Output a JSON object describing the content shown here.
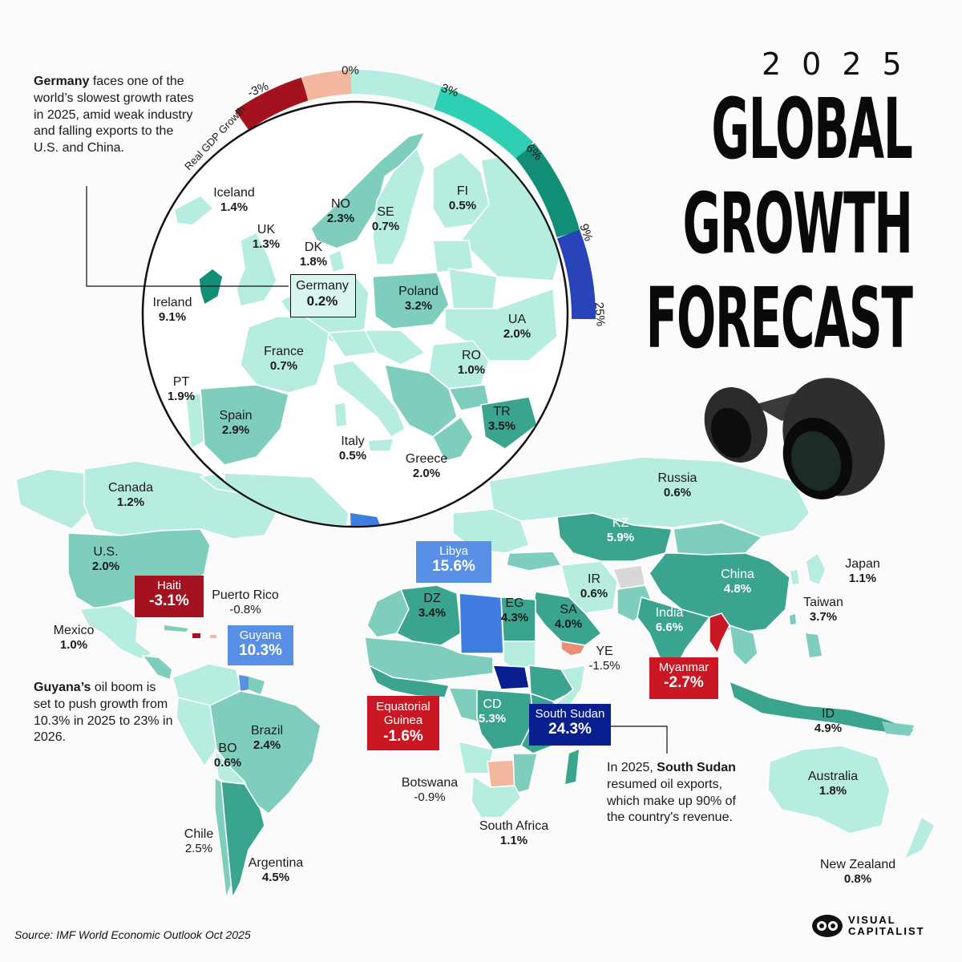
{
  "title": {
    "year": "2025",
    "line1": "GLOBAL",
    "line2": "GROWTH",
    "line3": "FORECAST"
  },
  "legend": {
    "label": "Real GDP Growth",
    "ticks": [
      "-3%",
      "0%",
      "3%",
      "6%",
      "9%",
      "25%"
    ]
  },
  "colors": {
    "strong_negative": "#a3121e",
    "mild_negative": "#f2b79f",
    "low_growth": "#b7ece1",
    "mid_growth": "#7fcdbd",
    "high_growth": "#3aa48e",
    "very_high_growth": "#5a8fe6",
    "extreme_growth": "#0a1f8f"
  },
  "europe_inset": [
    {
      "name": "Iceland",
      "value": "1.4%"
    },
    {
      "name": "NO",
      "value": "2.3%"
    },
    {
      "name": "SE",
      "value": "0.7%"
    },
    {
      "name": "FI",
      "value": "0.5%"
    },
    {
      "name": "UK",
      "value": "1.3%"
    },
    {
      "name": "DK",
      "value": "1.8%"
    },
    {
      "name": "Ireland",
      "value": "9.1%"
    },
    {
      "name": "Germany",
      "value": "0.2%"
    },
    {
      "name": "Poland",
      "value": "3.2%"
    },
    {
      "name": "UA",
      "value": "2.0%"
    },
    {
      "name": "France",
      "value": "0.7%"
    },
    {
      "name": "RO",
      "value": "1.0%"
    },
    {
      "name": "PT",
      "value": "1.9%"
    },
    {
      "name": "Spain",
      "value": "2.9%"
    },
    {
      "name": "TR",
      "value": "3.5%"
    },
    {
      "name": "Italy",
      "value": "0.5%"
    },
    {
      "name": "Greece",
      "value": "2.0%"
    }
  ],
  "world": [
    {
      "name": "Canada",
      "value": "1.2%"
    },
    {
      "name": "U.S.",
      "value": "2.0%"
    },
    {
      "name": "Mexico",
      "value": "1.0%"
    },
    {
      "name": "Puerto Rico",
      "value": "-0.8%"
    },
    {
      "name": "Brazil",
      "value": "2.4%"
    },
    {
      "name": "BO",
      "value": "0.6%"
    },
    {
      "name": "Chile",
      "value": "2.5%"
    },
    {
      "name": "Argentina",
      "value": "4.5%"
    },
    {
      "name": "Russia",
      "value": "0.6%"
    },
    {
      "name": "KZ",
      "value": "5.9%"
    },
    {
      "name": "China",
      "value": "4.8%"
    },
    {
      "name": "Japan",
      "value": "1.1%"
    },
    {
      "name": "Taiwan",
      "value": "3.7%"
    },
    {
      "name": "India",
      "value": "6.6%"
    },
    {
      "name": "IR",
      "value": "0.6%"
    },
    {
      "name": "SA",
      "value": "4.0%"
    },
    {
      "name": "YE",
      "value": "-1.5%"
    },
    {
      "name": "EG",
      "value": "4.3%"
    },
    {
      "name": "DZ",
      "value": "3.4%"
    },
    {
      "name": "CD",
      "value": "5.3%"
    },
    {
      "name": "Botswana",
      "value": "-0.9%"
    },
    {
      "name": "South Africa",
      "value": "1.1%"
    },
    {
      "name": "ID",
      "value": "4.9%"
    },
    {
      "name": "Australia",
      "value": "1.8%"
    },
    {
      "name": "New Zealand",
      "value": "0.8%"
    }
  ],
  "highlights": {
    "haiti": {
      "name": "Haiti",
      "value": "-3.1%"
    },
    "guyana": {
      "name": "Guyana",
      "value": "10.3%"
    },
    "libya": {
      "name": "Libya",
      "value": "15.6%"
    },
    "myanmar": {
      "name": "Myanmar",
      "value": "-2.7%"
    },
    "eq_guinea": {
      "name1": "Equatorial",
      "name2": "Guinea",
      "value": "-1.6%"
    },
    "south_sudan": {
      "name": "South Sudan",
      "value": "24.3%"
    }
  },
  "notes": {
    "germany": {
      "bold": "Germany",
      "text": " faces one of the world’s slowest growth rates in 2025, amid weak industry and falling exports to the U.S. and China."
    },
    "guyana": {
      "bold": "Guyana’s",
      "text": " oil boom is set to push growth from 10.3% in 2025 to 23% in 2026."
    },
    "south_sudan": {
      "pre": "In 2025, ",
      "bold": "South Sudan",
      "text": " resumed oil exports, which make up 90% of the country's revenue."
    }
  },
  "source": "Source: IMF World Economic Outlook Oct 2025",
  "brand": {
    "line1": "VISUAL",
    "line2": "CAPITALIST"
  }
}
